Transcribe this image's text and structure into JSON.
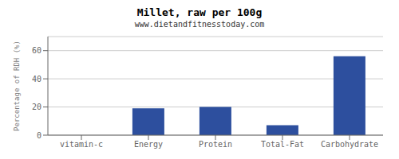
{
  "chart_data": {
    "type": "bar",
    "title": "Millet, raw per 100g",
    "subtitle": "www.dietandfitnesstoday.com",
    "categories": [
      "vitamin-c",
      "Energy",
      "Protein",
      "Total-Fat",
      "Carbohydrate"
    ],
    "values": [
      0,
      19,
      20,
      7,
      56
    ],
    "color": "#2d4f9e",
    "ylabel": "Percentage of RDH (%)",
    "ylim": [
      0,
      70
    ],
    "yticks": [
      0,
      20,
      40,
      60
    ],
    "grid": true
  }
}
